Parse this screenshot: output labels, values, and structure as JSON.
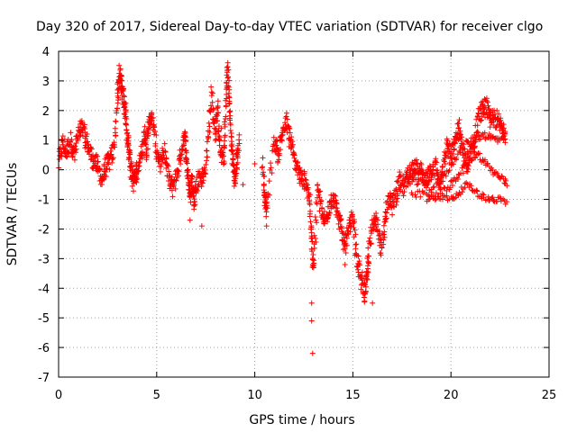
{
  "chart_data": {
    "type": "scatter",
    "title": "Day 320 of 2017, Sidereal Day-to-day VTEC variation (SDTVAR) for receiver clgo",
    "xlabel": "GPS time / hours",
    "ylabel": "SDTVAR / TECUs",
    "xlim": [
      0,
      25
    ],
    "ylim": [
      -7,
      4
    ],
    "xticks": [
      0,
      5,
      10,
      15,
      20,
      25
    ],
    "yticks": [
      -7,
      -6,
      -5,
      -4,
      -3,
      -2,
      -1,
      0,
      1,
      2,
      3,
      4
    ],
    "grid": true,
    "marker": "+",
    "color": "#ff0000",
    "series": [
      {
        "name": "SDTVAR",
        "trace": [
          [
            0.0,
            0.2
          ],
          [
            0.2,
            0.9
          ],
          [
            0.4,
            0.6
          ],
          [
            0.6,
            1.0
          ],
          [
            0.8,
            0.5
          ],
          [
            1.0,
            1.2
          ],
          [
            1.2,
            1.4
          ],
          [
            1.4,
            1.0
          ],
          [
            1.6,
            0.6
          ],
          [
            1.8,
            0.3
          ],
          [
            2.0,
            0.1
          ],
          [
            2.2,
            -0.3
          ],
          [
            2.4,
            0.1
          ],
          [
            2.6,
            0.3
          ],
          [
            2.8,
            0.6
          ],
          [
            3.0,
            2.3
          ],
          [
            3.1,
            3.2
          ],
          [
            3.2,
            3.0
          ],
          [
            3.3,
            2.4
          ],
          [
            3.4,
            2.0
          ],
          [
            3.5,
            1.2
          ],
          [
            3.6,
            0.6
          ],
          [
            3.7,
            0.0
          ],
          [
            3.8,
            -0.4
          ],
          [
            3.9,
            -0.3
          ],
          [
            4.0,
            0.0
          ],
          [
            4.2,
            0.5
          ],
          [
            4.4,
            1.3
          ],
          [
            4.5,
            0.6
          ],
          [
            4.6,
            1.8
          ],
          [
            4.8,
            1.6
          ],
          [
            5.0,
            0.6
          ],
          [
            5.2,
            0.2
          ],
          [
            5.4,
            0.6
          ],
          [
            5.6,
            -0.3
          ],
          [
            5.8,
            -0.6
          ],
          [
            6.0,
            -0.2
          ],
          [
            6.2,
            0.4
          ],
          [
            6.4,
            1.2
          ],
          [
            6.5,
            0.6
          ],
          [
            6.6,
            -0.2
          ],
          [
            6.7,
            -0.9
          ],
          [
            6.8,
            -0.3
          ],
          [
            6.9,
            -1.0
          ],
          [
            7.0,
            -0.6
          ],
          [
            7.2,
            -0.2
          ],
          [
            7.4,
            -0.3
          ],
          [
            7.6,
            0.8
          ],
          [
            7.8,
            2.6
          ],
          [
            8.0,
            1.2
          ],
          [
            8.1,
            2.0
          ],
          [
            8.2,
            0.8
          ],
          [
            8.4,
            0.2
          ],
          [
            8.5,
            1.6
          ],
          [
            8.6,
            3.5
          ],
          [
            8.7,
            2.4
          ],
          [
            8.8,
            1.0
          ],
          [
            8.9,
            0.2
          ],
          [
            9.0,
            -0.4
          ],
          [
            9.1,
            0.4
          ],
          [
            9.2,
            1.0
          ]
        ],
        "trace2": [
          [
            10.4,
            0.1
          ],
          [
            10.5,
            -0.9
          ],
          [
            10.6,
            -1.3
          ],
          [
            11.0,
            1.0
          ],
          [
            11.2,
            0.5
          ],
          [
            11.4,
            1.2
          ],
          [
            11.6,
            1.6
          ],
          [
            11.8,
            1.0
          ],
          [
            12.0,
            0.4
          ],
          [
            12.2,
            0.0
          ],
          [
            12.4,
            -0.4
          ],
          [
            12.6,
            -0.3
          ],
          [
            12.8,
            -1.0
          ],
          [
            12.9,
            -2.4
          ],
          [
            13.0,
            -3.4
          ],
          [
            13.2,
            -0.6
          ],
          [
            13.4,
            -1.4
          ],
          [
            13.6,
            -1.8
          ],
          [
            13.8,
            -1.2
          ],
          [
            14.0,
            -0.9
          ],
          [
            14.2,
            -1.4
          ],
          [
            14.4,
            -2.0
          ],
          [
            14.6,
            -2.6
          ],
          [
            14.8,
            -2.0
          ],
          [
            15.0,
            -1.6
          ],
          [
            15.2,
            -3.0
          ],
          [
            15.4,
            -3.6
          ],
          [
            15.6,
            -4.2
          ],
          [
            15.7,
            -3.8
          ],
          [
            15.8,
            -2.8
          ],
          [
            16.0,
            -2.0
          ],
          [
            16.2,
            -1.6
          ],
          [
            16.4,
            -2.6
          ],
          [
            16.6,
            -2.0
          ],
          [
            16.8,
            -1.0
          ],
          [
            17.0,
            -1.2
          ],
          [
            17.2,
            -0.8
          ],
          [
            17.4,
            -0.4
          ],
          [
            17.6,
            -0.6
          ],
          [
            17.8,
            -0.3
          ],
          [
            18.0,
            -0.1
          ],
          [
            18.2,
            0.0
          ],
          [
            18.4,
            0.1
          ],
          [
            18.6,
            -0.4
          ],
          [
            18.8,
            -0.2
          ],
          [
            19.0,
            0.0
          ],
          [
            19.2,
            0.1
          ],
          [
            19.4,
            -0.5
          ],
          [
            19.6,
            0.0
          ],
          [
            19.8,
            0.8
          ],
          [
            20.0,
            0.4
          ],
          [
            20.2,
            1.0
          ],
          [
            20.4,
            1.4
          ],
          [
            20.6,
            0.6
          ],
          [
            20.8,
            0.2
          ],
          [
            21.0,
            0.6
          ],
          [
            21.2,
            0.9
          ],
          [
            21.4,
            1.8
          ],
          [
            21.6,
            2.0
          ],
          [
            21.8,
            2.2
          ],
          [
            22.0,
            1.6
          ],
          [
            22.2,
            1.8
          ],
          [
            22.4,
            1.6
          ],
          [
            22.6,
            1.4
          ],
          [
            22.8,
            1.2
          ]
        ],
        "branch_upper": [
          [
            17.8,
            -0.5
          ],
          [
            18.4,
            -0.4
          ],
          [
            19.0,
            -0.6
          ],
          [
            19.6,
            -0.3
          ],
          [
            20.0,
            0.2
          ],
          [
            20.4,
            0.6
          ],
          [
            20.8,
            0.9
          ],
          [
            21.2,
            1.0
          ],
          [
            21.6,
            1.2
          ],
          [
            22.0,
            1.1
          ],
          [
            22.4,
            1.0
          ],
          [
            22.8,
            1.2
          ]
        ],
        "branch_mid": [
          [
            18.0,
            -0.9
          ],
          [
            18.6,
            -0.8
          ],
          [
            19.2,
            -0.9
          ],
          [
            19.8,
            -0.6
          ],
          [
            20.2,
            -0.4
          ],
          [
            20.6,
            0.0
          ],
          [
            21.0,
            0.4
          ],
          [
            21.4,
            0.5
          ],
          [
            21.8,
            0.2
          ],
          [
            22.2,
            -0.1
          ],
          [
            22.6,
            -0.3
          ],
          [
            22.9,
            -0.5
          ]
        ],
        "branch_lower": [
          [
            18.8,
            -1.0
          ],
          [
            19.4,
            -0.9
          ],
          [
            20.0,
            -1.0
          ],
          [
            20.4,
            -0.8
          ],
          [
            20.8,
            -0.5
          ],
          [
            21.2,
            -0.7
          ],
          [
            21.6,
            -0.9
          ],
          [
            22.0,
            -1.0
          ],
          [
            22.4,
            -1.0
          ],
          [
            22.9,
            -1.1
          ]
        ],
        "isolated": [
          [
            9.4,
            -0.5
          ],
          [
            10.0,
            0.2
          ],
          [
            12.9,
            -4.5
          ],
          [
            12.9,
            -5.1
          ],
          [
            12.95,
            -6.2
          ],
          [
            7.3,
            -1.9
          ],
          [
            6.7,
            -1.7
          ],
          [
            10.6,
            -1.9
          ],
          [
            16.0,
            -4.5
          ],
          [
            14.6,
            -3.2
          ],
          [
            8.3,
            1.4
          ],
          [
            3.0,
            2.9
          ]
        ]
      }
    ]
  }
}
